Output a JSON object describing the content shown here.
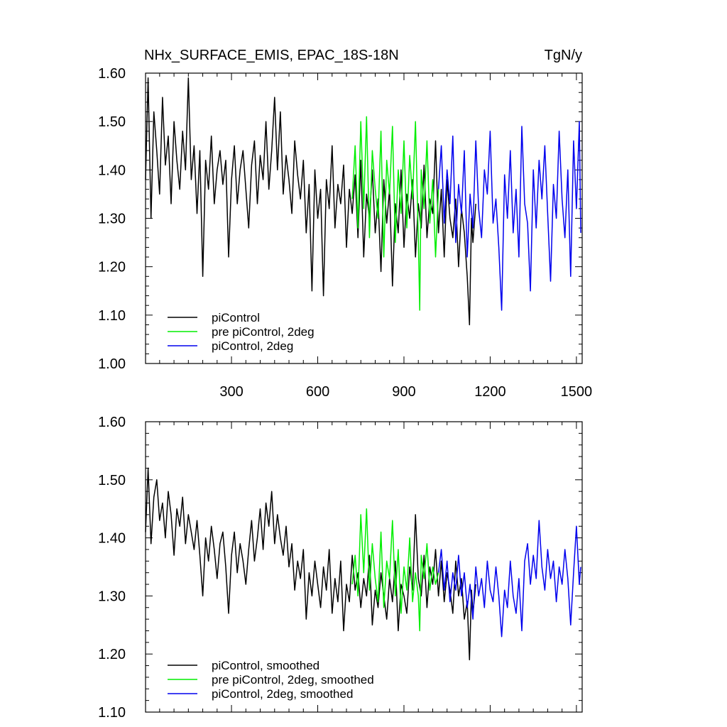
{
  "chart_data": [
    {
      "type": "line",
      "title": "NHx_SURFACE_EMIS, EPAC_18S-18N",
      "unit_label": "TgN/y",
      "xlim": [
        1,
        1520
      ],
      "ylim": [
        1.0,
        1.6
      ],
      "x_ticks": [
        300,
        600,
        900,
        1200,
        1500
      ],
      "x_tick_labels": [
        "300",
        "600",
        "900",
        "1200",
        "1500"
      ],
      "y_ticks": [
        1.0,
        1.1,
        1.2,
        1.3,
        1.4,
        1.5,
        1.6
      ],
      "y_tick_labels": [
        "1.00",
        "1.10",
        "1.20",
        "1.30",
        "1.40",
        "1.50",
        "1.60"
      ],
      "legend_position": "bottom-left",
      "series": [
        {
          "name": "piControl",
          "color": "#000000",
          "x": [
            1,
            10,
            20,
            30,
            40,
            50,
            60,
            70,
            80,
            90,
            100,
            110,
            120,
            130,
            140,
            150,
            160,
            170,
            180,
            190,
            200,
            210,
            220,
            230,
            240,
            250,
            260,
            270,
            280,
            290,
            300,
            310,
            320,
            330,
            340,
            350,
            360,
            370,
            380,
            390,
            400,
            410,
            420,
            430,
            440,
            450,
            460,
            470,
            480,
            490,
            500,
            510,
            520,
            530,
            540,
            550,
            560,
            570,
            580,
            590,
            600,
            610,
            620,
            630,
            640,
            650,
            660,
            670,
            680,
            690,
            700,
            710,
            720,
            730,
            740,
            750,
            760,
            770,
            780,
            790,
            800,
            810,
            820,
            830,
            840,
            850,
            860,
            870,
            880,
            890,
            900,
            910,
            920,
            930,
            940,
            950,
            960,
            970,
            980,
            990,
            1000,
            1010,
            1020,
            1030,
            1040,
            1050,
            1060,
            1070,
            1080,
            1090,
            1100,
            1110,
            1120,
            1128,
            1135,
            1140,
            1150
          ],
          "y": [
            1.38,
            1.59,
            1.3,
            1.52,
            1.44,
            1.35,
            1.55,
            1.41,
            1.47,
            1.33,
            1.5,
            1.42,
            1.36,
            1.48,
            1.4,
            1.59,
            1.38,
            1.45,
            1.31,
            1.44,
            1.18,
            1.42,
            1.36,
            1.47,
            1.33,
            1.4,
            1.44,
            1.37,
            1.42,
            1.22,
            1.38,
            1.45,
            1.33,
            1.4,
            1.44,
            1.36,
            1.28,
            1.41,
            1.46,
            1.33,
            1.43,
            1.38,
            1.5,
            1.36,
            1.44,
            1.55,
            1.4,
            1.52,
            1.35,
            1.43,
            1.38,
            1.31,
            1.46,
            1.39,
            1.34,
            1.42,
            1.27,
            1.37,
            1.15,
            1.4,
            1.3,
            1.36,
            1.14,
            1.38,
            1.32,
            1.45,
            1.28,
            1.37,
            1.33,
            1.41,
            1.24,
            1.36,
            1.31,
            1.39,
            1.26,
            1.42,
            1.22,
            1.35,
            1.3,
            1.4,
            1.27,
            1.34,
            1.19,
            1.38,
            1.29,
            1.36,
            1.16,
            1.33,
            1.27,
            1.4,
            1.24,
            1.35,
            1.3,
            1.38,
            1.22,
            1.33,
            1.28,
            1.41,
            1.26,
            1.34,
            1.31,
            1.46,
            1.27,
            1.36,
            1.22,
            1.38,
            1.3,
            1.26,
            1.34,
            1.2,
            1.32,
            1.27,
            1.18,
            1.08,
            1.3,
            1.25,
            1.33
          ]
        },
        {
          "name": "pre piControl, 2deg",
          "color": "#00ee00",
          "x": [
            720,
            730,
            740,
            750,
            760,
            770,
            780,
            790,
            800,
            810,
            820,
            830,
            840,
            850,
            860,
            870,
            880,
            890,
            900,
            910,
            920,
            930,
            940,
            950,
            955,
            960,
            970,
            980,
            990,
            1000,
            1010,
            1020
          ],
          "y": [
            1.34,
            1.45,
            1.28,
            1.5,
            1.32,
            1.51,
            1.26,
            1.44,
            1.36,
            1.3,
            1.48,
            1.22,
            1.42,
            1.35,
            1.49,
            1.25,
            1.4,
            1.31,
            1.46,
            1.28,
            1.43,
            1.34,
            1.5,
            1.26,
            1.11,
            1.4,
            1.32,
            1.46,
            1.29,
            1.38,
            1.22,
            1.36
          ]
        },
        {
          "name": "piControl, 2deg",
          "color": "#0000ee",
          "x": [
            1020,
            1030,
            1040,
            1050,
            1060,
            1070,
            1080,
            1090,
            1100,
            1110,
            1120,
            1130,
            1140,
            1150,
            1160,
            1170,
            1180,
            1190,
            1200,
            1210,
            1220,
            1230,
            1240,
            1250,
            1260,
            1270,
            1280,
            1290,
            1300,
            1310,
            1320,
            1330,
            1340,
            1350,
            1360,
            1370,
            1380,
            1390,
            1400,
            1410,
            1420,
            1430,
            1440,
            1450,
            1460,
            1470,
            1480,
            1490,
            1500,
            1510,
            1515
          ],
          "y": [
            1.36,
            1.45,
            1.29,
            1.4,
            1.33,
            1.47,
            1.25,
            1.37,
            1.31,
            1.44,
            1.22,
            1.35,
            1.28,
            1.46,
            1.32,
            1.26,
            1.4,
            1.35,
            1.48,
            1.29,
            1.34,
            1.24,
            1.11,
            1.39,
            1.3,
            1.44,
            1.27,
            1.36,
            1.22,
            1.49,
            1.33,
            1.29,
            1.15,
            1.4,
            1.28,
            1.42,
            1.34,
            1.45,
            1.31,
            1.17,
            1.37,
            1.3,
            1.48,
            1.34,
            1.26,
            1.4,
            1.18,
            1.46,
            1.32,
            1.5,
            1.27
          ]
        }
      ],
      "legend": [
        "piControl",
        "pre piControl, 2deg",
        "piControl, 2deg"
      ]
    },
    {
      "type": "line",
      "title": "",
      "xlim": [
        1,
        1520
      ],
      "ylim": [
        1.1,
        1.6
      ],
      "x_ticks": [
        300,
        600,
        900,
        1200,
        1500
      ],
      "y_ticks": [
        1.1,
        1.2,
        1.3,
        1.4,
        1.5,
        1.6
      ],
      "y_tick_labels": [
        "1.10",
        "1.20",
        "1.30",
        "1.40",
        "1.50",
        "1.60"
      ],
      "legend_position": "bottom-left",
      "series": [
        {
          "name": "piControl, smoothed",
          "color": "#000000",
          "x": [
            1,
            10,
            20,
            30,
            40,
            50,
            60,
            70,
            80,
            90,
            100,
            110,
            120,
            130,
            140,
            150,
            160,
            170,
            180,
            190,
            200,
            210,
            220,
            230,
            240,
            250,
            260,
            270,
            280,
            290,
            300,
            310,
            320,
            330,
            340,
            350,
            360,
            370,
            380,
            390,
            400,
            410,
            420,
            430,
            440,
            450,
            460,
            470,
            480,
            490,
            500,
            510,
            520,
            530,
            540,
            550,
            560,
            570,
            580,
            590,
            600,
            610,
            620,
            630,
            640,
            650,
            660,
            670,
            680,
            690,
            700,
            710,
            720,
            730,
            740,
            750,
            760,
            770,
            780,
            790,
            800,
            810,
            820,
            830,
            840,
            850,
            860,
            870,
            880,
            890,
            900,
            910,
            920,
            930,
            940,
            950,
            960,
            970,
            980,
            990,
            1000,
            1010,
            1020,
            1030,
            1040,
            1050,
            1060,
            1070,
            1080,
            1090,
            1100,
            1110,
            1120,
            1128,
            1135,
            1140,
            1150
          ],
          "y": [
            1.41,
            1.52,
            1.39,
            1.47,
            1.5,
            1.43,
            1.46,
            1.4,
            1.48,
            1.44,
            1.37,
            1.45,
            1.42,
            1.47,
            1.39,
            1.44,
            1.41,
            1.38,
            1.43,
            1.37,
            1.3,
            1.4,
            1.36,
            1.42,
            1.38,
            1.33,
            1.39,
            1.41,
            1.35,
            1.27,
            1.37,
            1.41,
            1.34,
            1.39,
            1.36,
            1.32,
            1.38,
            1.43,
            1.36,
            1.4,
            1.45,
            1.38,
            1.46,
            1.42,
            1.48,
            1.39,
            1.44,
            1.4,
            1.37,
            1.42,
            1.35,
            1.39,
            1.31,
            1.36,
            1.33,
            1.38,
            1.26,
            1.34,
            1.3,
            1.36,
            1.32,
            1.28,
            1.35,
            1.31,
            1.38,
            1.27,
            1.33,
            1.29,
            1.36,
            1.24,
            1.32,
            1.29,
            1.37,
            1.31,
            1.34,
            1.28,
            1.33,
            1.3,
            1.37,
            1.25,
            1.31,
            1.28,
            1.34,
            1.3,
            1.26,
            1.33,
            1.29,
            1.36,
            1.24,
            1.32,
            1.3,
            1.27,
            1.35,
            1.31,
            1.44,
            1.33,
            1.3,
            1.37,
            1.28,
            1.35,
            1.32,
            1.38,
            1.3,
            1.36,
            1.29,
            1.34,
            1.31,
            1.27,
            1.36,
            1.3,
            1.33,
            1.26,
            1.29,
            1.19,
            1.31,
            1.27,
            1.32
          ]
        },
        {
          "name": "pre piControl, 2deg, smoothed",
          "color": "#00ee00",
          "x": [
            720,
            730,
            740,
            750,
            760,
            770,
            780,
            790,
            800,
            810,
            820,
            830,
            840,
            850,
            860,
            870,
            880,
            890,
            900,
            910,
            920,
            930,
            940,
            950,
            955,
            960,
            970,
            980,
            990,
            1000,
            1010,
            1020
          ],
          "y": [
            1.32,
            1.37,
            1.3,
            1.44,
            1.34,
            1.45,
            1.31,
            1.39,
            1.33,
            1.29,
            1.41,
            1.28,
            1.36,
            1.33,
            1.43,
            1.3,
            1.38,
            1.27,
            1.35,
            1.31,
            1.4,
            1.29,
            1.34,
            1.3,
            1.24,
            1.37,
            1.33,
            1.39,
            1.31,
            1.35,
            1.32,
            1.34
          ]
        },
        {
          "name": "piControl, 2deg, smoothed",
          "color": "#0000ee",
          "x": [
            1020,
            1030,
            1040,
            1050,
            1060,
            1070,
            1080,
            1090,
            1100,
            1110,
            1120,
            1130,
            1140,
            1150,
            1160,
            1170,
            1180,
            1190,
            1200,
            1210,
            1220,
            1230,
            1240,
            1250,
            1260,
            1270,
            1280,
            1290,
            1300,
            1310,
            1320,
            1330,
            1340,
            1350,
            1360,
            1370,
            1380,
            1390,
            1400,
            1410,
            1420,
            1430,
            1440,
            1450,
            1460,
            1470,
            1480,
            1490,
            1500,
            1510,
            1515
          ],
          "y": [
            1.34,
            1.38,
            1.31,
            1.36,
            1.29,
            1.34,
            1.31,
            1.37,
            1.3,
            1.34,
            1.28,
            1.32,
            1.26,
            1.35,
            1.3,
            1.33,
            1.28,
            1.36,
            1.31,
            1.29,
            1.35,
            1.3,
            1.23,
            1.31,
            1.28,
            1.36,
            1.3,
            1.27,
            1.33,
            1.24,
            1.36,
            1.39,
            1.32,
            1.37,
            1.33,
            1.43,
            1.35,
            1.31,
            1.38,
            1.33,
            1.36,
            1.29,
            1.35,
            1.32,
            1.38,
            1.33,
            1.25,
            1.34,
            1.42,
            1.32,
            1.35
          ]
        }
      ],
      "legend": [
        "piControl, smoothed",
        "pre piControl, 2deg, smoothed",
        "piControl, 2deg, smoothed"
      ]
    }
  ]
}
